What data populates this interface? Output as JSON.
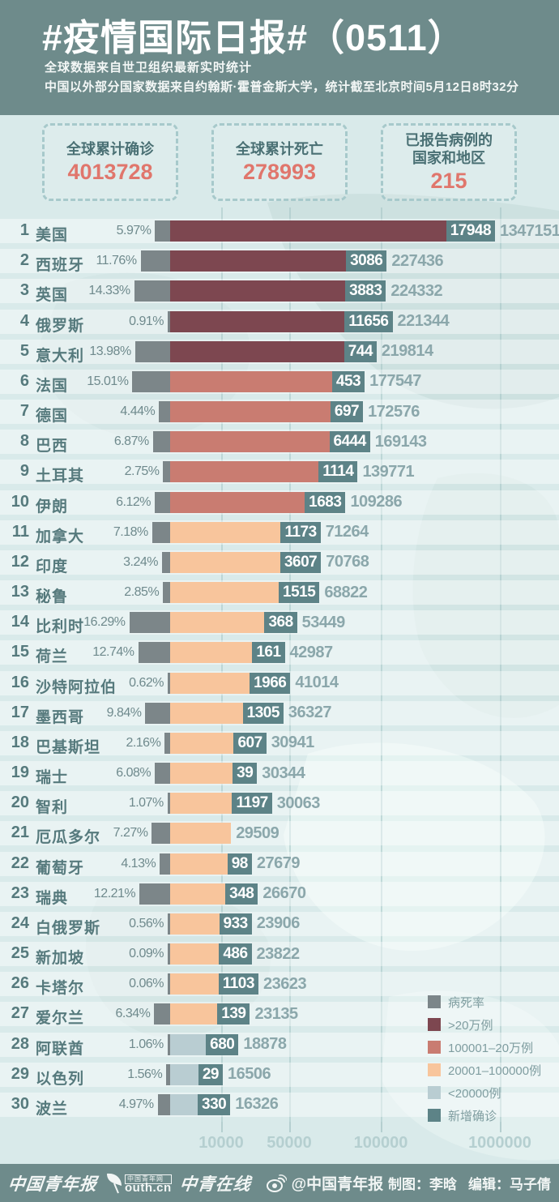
{
  "header": {
    "title": "#疫情国际日报#（0511）",
    "subtitle_line1": "全球数据来自世卫组织最新实时统计",
    "subtitle_line2": "中国以外部分国家数据来自约翰斯·霍普金斯大学，统计截至北京时间5月12日8时32分"
  },
  "stats": [
    {
      "label": "全球累计确诊",
      "value": "4013728"
    },
    {
      "label": "全球累计死亡",
      "value": "278993"
    },
    {
      "label": "已报告病例的\n国家和地区",
      "value": "215"
    }
  ],
  "chart_data": {
    "type": "bar",
    "title": "#疫情国际日报#（0511）",
    "orientation": "horizontal",
    "x_axis": {
      "scale": "log",
      "tick_labels": [
        "10000",
        "50000",
        "100000",
        "1000000"
      ],
      "tick_values": [
        10000,
        50000,
        100000,
        1000000
      ]
    },
    "columns": [
      "rank",
      "country",
      "fatality_rate",
      "new_cases",
      "total_cases"
    ],
    "rows": [
      {
        "rank": 1,
        "country": "美国",
        "fatality_rate": "5.97%",
        "new_cases": 17948,
        "total_cases": 1347151
      },
      {
        "rank": 2,
        "country": "西班牙",
        "fatality_rate": "11.76%",
        "new_cases": 3086,
        "total_cases": 227436
      },
      {
        "rank": 3,
        "country": "英国",
        "fatality_rate": "14.33%",
        "new_cases": 3883,
        "total_cases": 224332
      },
      {
        "rank": 4,
        "country": "俄罗斯",
        "fatality_rate": "0.91%",
        "new_cases": 11656,
        "total_cases": 221344
      },
      {
        "rank": 5,
        "country": "意大利",
        "fatality_rate": "13.98%",
        "new_cases": 744,
        "total_cases": 219814
      },
      {
        "rank": 6,
        "country": "法国",
        "fatality_rate": "15.01%",
        "new_cases": 453,
        "total_cases": 177547
      },
      {
        "rank": 7,
        "country": "德国",
        "fatality_rate": "4.44%",
        "new_cases": 697,
        "total_cases": 172576
      },
      {
        "rank": 8,
        "country": "巴西",
        "fatality_rate": "6.87%",
        "new_cases": 6444,
        "total_cases": 169143
      },
      {
        "rank": 9,
        "country": "土耳其",
        "fatality_rate": "2.75%",
        "new_cases": 1114,
        "total_cases": 139771
      },
      {
        "rank": 10,
        "country": "伊朗",
        "fatality_rate": "6.12%",
        "new_cases": 1683,
        "total_cases": 109286
      },
      {
        "rank": 11,
        "country": "加拿大",
        "fatality_rate": "7.18%",
        "new_cases": 1173,
        "total_cases": 71264
      },
      {
        "rank": 12,
        "country": "印度",
        "fatality_rate": "3.24%",
        "new_cases": 3607,
        "total_cases": 70768
      },
      {
        "rank": 13,
        "country": "秘鲁",
        "fatality_rate": "2.85%",
        "new_cases": 1515,
        "total_cases": 68822
      },
      {
        "rank": 14,
        "country": "比利时",
        "fatality_rate": "16.29%",
        "new_cases": 368,
        "total_cases": 53449
      },
      {
        "rank": 15,
        "country": "荷兰",
        "fatality_rate": "12.74%",
        "new_cases": 161,
        "total_cases": 42987
      },
      {
        "rank": 16,
        "country": "沙特阿拉伯",
        "fatality_rate": "0.62%",
        "new_cases": 1966,
        "total_cases": 41014
      },
      {
        "rank": 17,
        "country": "墨西哥",
        "fatality_rate": "9.84%",
        "new_cases": 1305,
        "total_cases": 36327
      },
      {
        "rank": 18,
        "country": "巴基斯坦",
        "fatality_rate": "2.16%",
        "new_cases": 607,
        "total_cases": 30941
      },
      {
        "rank": 19,
        "country": "瑞士",
        "fatality_rate": "6.08%",
        "new_cases": 39,
        "total_cases": 30344
      },
      {
        "rank": 20,
        "country": "智利",
        "fatality_rate": "1.07%",
        "new_cases": 1197,
        "total_cases": 30063
      },
      {
        "rank": 21,
        "country": "厄瓜多尔",
        "fatality_rate": "7.27%",
        "new_cases": null,
        "total_cases": 29509
      },
      {
        "rank": 22,
        "country": "葡萄牙",
        "fatality_rate": "4.13%",
        "new_cases": 98,
        "total_cases": 27679
      },
      {
        "rank": 23,
        "country": "瑞典",
        "fatality_rate": "12.21%",
        "new_cases": 348,
        "total_cases": 26670
      },
      {
        "rank": 24,
        "country": "白俄罗斯",
        "fatality_rate": "0.56%",
        "new_cases": 933,
        "total_cases": 23906
      },
      {
        "rank": 25,
        "country": "新加坡",
        "fatality_rate": "0.09%",
        "new_cases": 486,
        "total_cases": 23822
      },
      {
        "rank": 26,
        "country": "卡塔尔",
        "fatality_rate": "0.06%",
        "new_cases": 1103,
        "total_cases": 23623
      },
      {
        "rank": 27,
        "country": "爱尔兰",
        "fatality_rate": "6.34%",
        "new_cases": 139,
        "total_cases": 23135
      },
      {
        "rank": 28,
        "country": "阿联酋",
        "fatality_rate": "1.06%",
        "new_cases": 680,
        "total_cases": 18878
      },
      {
        "rank": 29,
        "country": "以色列",
        "fatality_rate": "1.56%",
        "new_cases": 29,
        "total_cases": 16506
      },
      {
        "rank": 30,
        "country": "波兰",
        "fatality_rate": "4.97%",
        "new_cases": 330,
        "total_cases": 16326
      }
    ],
    "category_thresholds": {
      "gt200k": 200000,
      "c100k_200k": 100000,
      "c20k_100k": 20000
    }
  },
  "legend": [
    {
      "label": "病死率",
      "color_key": "fatality"
    },
    {
      "label": ">20万例",
      "color_key": "gt200k"
    },
    {
      "label": "100001–20万例",
      "color_key": "c100k_200k"
    },
    {
      "label": "20001–100000例",
      "color_key": "c20k_100k"
    },
    {
      "label": "<20000例",
      "color_key": "lt20k"
    },
    {
      "label": "新增确诊",
      "color_key": "new_cases"
    }
  ],
  "colors": {
    "fatality": "#7c8689",
    "gt200k": "#7d4750",
    "c100k_200k": "#c97c71",
    "c20k_100k": "#f8c59c",
    "lt20k": "#b9cdd2",
    "new_cases": "#5d8387",
    "header_bg": "#6e8b8b",
    "page_bg": "#d9eaea",
    "accent_number": "#e0766c"
  },
  "footer": {
    "logo1": "中国青年报",
    "logo2_badge": "中国青年网",
    "logo2_text": "outh.cn",
    "logo3": "中青在线",
    "weibo_handle": "@中国青年报",
    "credit_author": "制图：李晗",
    "credit_editor": "编辑：马子倩"
  }
}
